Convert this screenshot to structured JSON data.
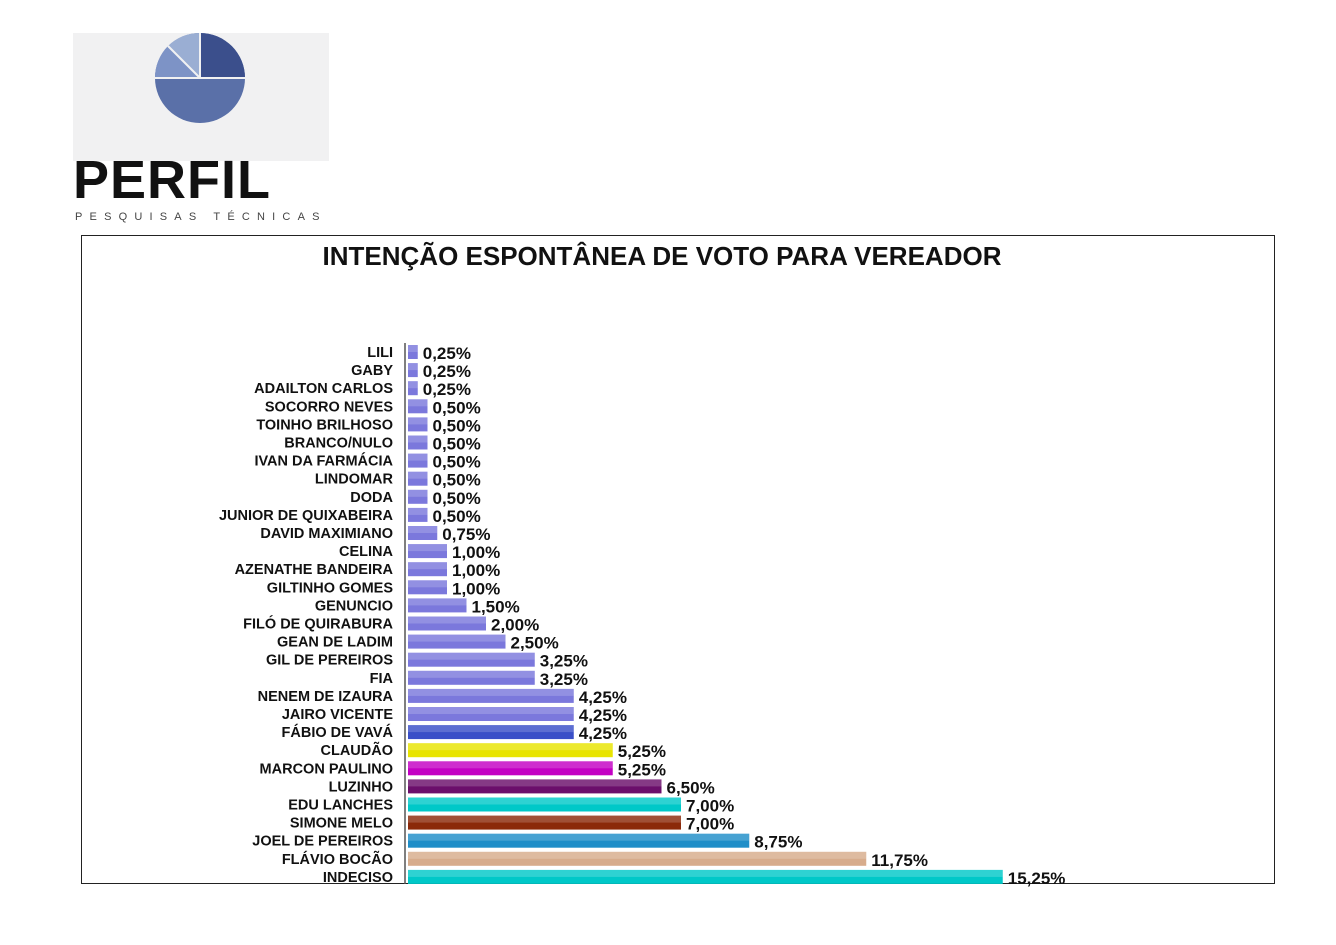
{
  "brand": {
    "name": "PERFIL",
    "tagline": "PESQUISAS TÉCNICAS"
  },
  "colors": {
    "default_bar": "#7b78dc",
    "claudao": "#e8e400",
    "marcon_paulino": "#c400c4",
    "luzinho": "#6b0f6b",
    "cyan": "#00c8c8",
    "simone_melo": "#8b2a0a",
    "joel_de_pereiros": "#1f8ec8",
    "flavio_bocao": "#d7ac8c",
    "fabio_de_vava": "#3a4fc8"
  },
  "chart_data": {
    "type": "bar",
    "orientation": "horizontal",
    "title": "INTENÇÃO ESPONTÂNEA DE VOTO PARA VEREADOR",
    "categories": [
      "LILI",
      "GABY",
      "ADAILTON CARLOS",
      "SOCORRO NEVES",
      "TOINHO BRILHOSO",
      "BRANCO/NULO",
      "IVAN DA FARMÁCIA",
      "LINDOMAR",
      "DODA",
      "JUNIOR DE QUIXABEIRA",
      "DAVID MAXIMIANO",
      "CELINA",
      "AZENATHE BANDEIRA",
      "GILTINHO GOMES",
      "GENUNCIO",
      "FILÓ DE QUIRABURA",
      "GEAN DE LADIM",
      "GIL DE PEREIROS",
      "FIA",
      "NENEM DE IZAURA",
      "JAIRO VICENTE",
      "FÁBIO DE VAVÁ",
      "CLAUDÃO",
      "MARCON PAULINO",
      "LUZINHO",
      "EDU LANCHES",
      "SIMONE MELO",
      "JOEL DE PEREIROS",
      "FLÁVIO BOCÃO",
      "INDECISO"
    ],
    "values": [
      0.25,
      0.25,
      0.25,
      0.5,
      0.5,
      0.5,
      0.5,
      0.5,
      0.5,
      0.5,
      0.75,
      1.0,
      1.0,
      1.0,
      1.5,
      2.0,
      2.5,
      3.25,
      3.25,
      4.25,
      4.25,
      4.25,
      5.25,
      5.25,
      6.5,
      7.0,
      7.0,
      8.75,
      11.75,
      15.25
    ],
    "labels": [
      "0,25%",
      "0,25%",
      "0,25%",
      "0,50%",
      "0,50%",
      "0,50%",
      "0,50%",
      "0,50%",
      "0,50%",
      "0,50%",
      "0,75%",
      "1,00%",
      "1,00%",
      "1,00%",
      "1,50%",
      "2,00%",
      "2,50%",
      "3,25%",
      "3,25%",
      "4,25%",
      "4,25%",
      "4,25%",
      "5,25%",
      "5,25%",
      "6,50%",
      "7,00%",
      "7,00%",
      "8,75%",
      "11,75%",
      "15,25%"
    ],
    "bar_colors": [
      "#7b78dc",
      "#7b78dc",
      "#7b78dc",
      "#7b78dc",
      "#7b78dc",
      "#7b78dc",
      "#7b78dc",
      "#7b78dc",
      "#7b78dc",
      "#7b78dc",
      "#7b78dc",
      "#7b78dc",
      "#7b78dc",
      "#7b78dc",
      "#7b78dc",
      "#7b78dc",
      "#7b78dc",
      "#7b78dc",
      "#7b78dc",
      "#7b78dc",
      "#7b78dc",
      "#3a4fc8",
      "#e8e400",
      "#c400c4",
      "#6b0f6b",
      "#00c8c8",
      "#8b2a0a",
      "#1f8ec8",
      "#d7ac8c",
      "#00c8c8"
    ],
    "xlim": [
      0,
      16
    ],
    "grid": false,
    "legend": "none"
  }
}
